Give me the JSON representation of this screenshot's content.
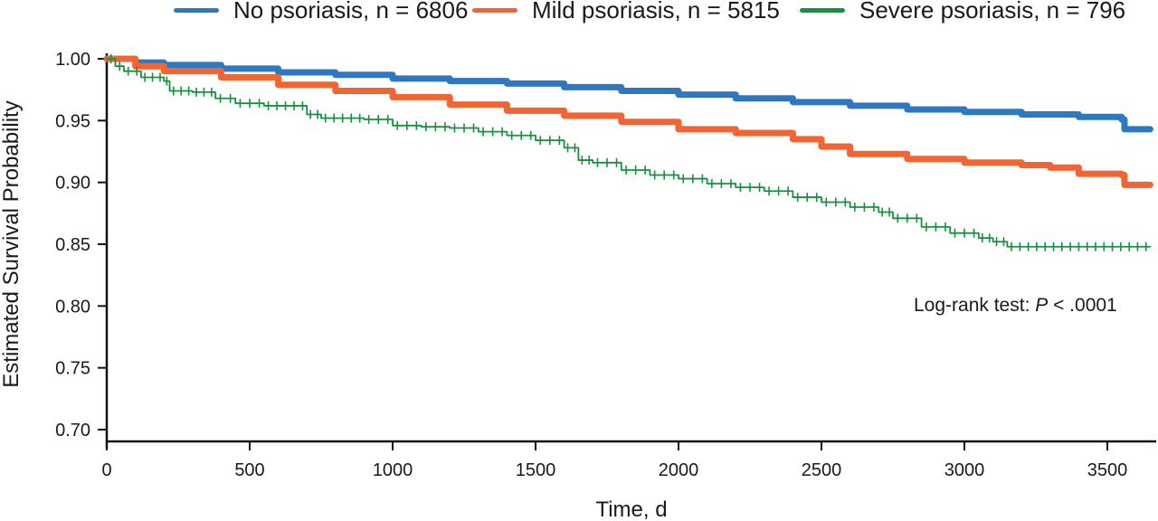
{
  "chart_data": {
    "type": "line",
    "title": "",
    "xlabel": "Time, d",
    "ylabel": "Estimated Survival Probability",
    "xlim": [
      0,
      3650
    ],
    "ylim": [
      0.69,
      1.0
    ],
    "xticks": [
      0,
      500,
      1000,
      1500,
      2000,
      2500,
      3000,
      3500
    ],
    "xtick_labels": [
      "0",
      "500",
      "1000",
      "1500",
      "2000",
      "2500",
      "3000",
      "3500"
    ],
    "yticks": [
      0.7,
      0.75,
      0.8,
      0.85,
      0.9,
      0.95,
      1.0
    ],
    "ytick_labels": [
      "0.70",
      "0.75",
      "0.80",
      "0.85",
      "0.90",
      "0.95",
      "1.00"
    ],
    "grid": false,
    "legend_position": "top",
    "annotation": {
      "prefix": "Log-rank test: ",
      "italic": "P",
      "suffix": " < .0001"
    },
    "series": [
      {
        "name": "No psoriasis, n = 6806",
        "color": "#2e78c2",
        "x": [
          0,
          100,
          200,
          400,
          600,
          800,
          1000,
          1200,
          1400,
          1600,
          1800,
          2000,
          2200,
          2400,
          2600,
          2800,
          3000,
          3200,
          3400,
          3550,
          3560,
          3600,
          3650
        ],
        "y": [
          1.0,
          0.997,
          0.995,
          0.992,
          0.989,
          0.987,
          0.984,
          0.982,
          0.98,
          0.977,
          0.974,
          0.971,
          0.968,
          0.965,
          0.962,
          0.959,
          0.957,
          0.955,
          0.953,
          0.951,
          0.943,
          0.943,
          0.943
        ]
      },
      {
        "name": "Mild psoriasis, n = 5815",
        "color": "#f26532",
        "x": [
          0,
          100,
          200,
          400,
          600,
          800,
          1000,
          1200,
          1400,
          1600,
          1800,
          2000,
          2200,
          2400,
          2500,
          2600,
          2800,
          3000,
          3200,
          3300,
          3400,
          3550,
          3560,
          3650
        ],
        "y": [
          1.0,
          0.994,
          0.99,
          0.985,
          0.979,
          0.974,
          0.969,
          0.963,
          0.958,
          0.954,
          0.949,
          0.943,
          0.94,
          0.935,
          0.929,
          0.923,
          0.919,
          0.916,
          0.914,
          0.912,
          0.907,
          0.906,
          0.898,
          0.898
        ]
      },
      {
        "name": "Severe psoriasis, n = 796",
        "color": "#16923e",
        "x": [
          0,
          30,
          60,
          120,
          200,
          220,
          300,
          380,
          450,
          550,
          700,
          750,
          900,
          1000,
          1100,
          1200,
          1300,
          1400,
          1500,
          1600,
          1650,
          1700,
          1800,
          1900,
          2000,
          2100,
          2200,
          2300,
          2400,
          2500,
          2600,
          2700,
          2750,
          2850,
          2950,
          3050,
          3100,
          3150,
          3650
        ],
        "y": [
          1.0,
          0.994,
          0.99,
          0.985,
          0.982,
          0.974,
          0.973,
          0.968,
          0.964,
          0.962,
          0.955,
          0.952,
          0.951,
          0.946,
          0.945,
          0.944,
          0.941,
          0.938,
          0.934,
          0.928,
          0.918,
          0.916,
          0.91,
          0.906,
          0.903,
          0.899,
          0.896,
          0.893,
          0.888,
          0.884,
          0.88,
          0.876,
          0.871,
          0.864,
          0.859,
          0.855,
          0.852,
          0.848,
          0.848
        ]
      }
    ]
  }
}
